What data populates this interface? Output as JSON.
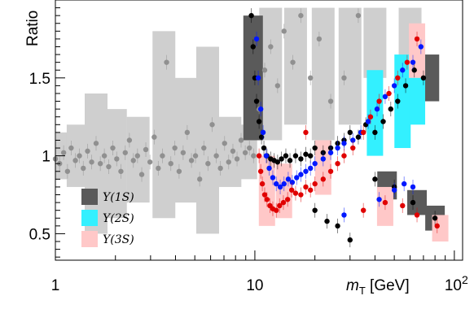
{
  "chart_data": {
    "type": "scatter",
    "title": "",
    "ylabel": "Ratio",
    "xlabel_main": "m",
    "xlabel_sub": "T",
    "xlabel_unit": " [GeV]",
    "xscale": "log",
    "xlim": [
      1,
      110
    ],
    "ylim": [
      0.33,
      2.0
    ],
    "x_ticks": [
      {
        "value": 1,
        "label": "1"
      },
      {
        "value": 10,
        "label": "10"
      }
    ],
    "x_tick_100": {
      "base": "10",
      "exp": "2"
    },
    "y_ticks": [
      {
        "value": 0.5,
        "label": "0.5"
      },
      {
        "value": 1.0,
        "label": "1"
      },
      {
        "value": 1.5,
        "label": "1.5"
      }
    ],
    "legend": {
      "placement": "bottom-left",
      "entries": [
        {
          "label": "Υ(1S)",
          "box_color": "#5a5a5a"
        },
        {
          "label": "Υ(2S)",
          "box_color": "#33f0ff"
        },
        {
          "label": "Υ(3S)",
          "box_color": "#ffc8c8"
        }
      ]
    },
    "series": [
      {
        "key": "reference",
        "color": "#909090",
        "band_color": "#cfcfcf",
        "points": [
          [
            1.0,
            0.98
          ],
          [
            1.05,
            0.95
          ],
          [
            1.1,
            1.02
          ],
          [
            1.15,
            0.9
          ],
          [
            1.2,
            1.05
          ],
          [
            1.26,
            0.97
          ],
          [
            1.32,
            1.0
          ],
          [
            1.38,
            0.92
          ],
          [
            1.45,
            1.03
          ],
          [
            1.52,
            0.96
          ],
          [
            1.6,
            1.08
          ],
          [
            1.68,
            0.95
          ],
          [
            1.76,
            1.0
          ],
          [
            1.85,
            0.93
          ],
          [
            1.94,
            1.05
          ],
          [
            2.03,
            0.98
          ],
          [
            2.13,
            0.9
          ],
          [
            2.24,
            1.02
          ],
          [
            2.35,
            1.1
          ],
          [
            2.46,
            0.97
          ],
          [
            2.58,
            1.0
          ],
          [
            2.71,
            0.88
          ],
          [
            2.84,
            1.04
          ],
          [
            2.98,
            0.96
          ],
          [
            3.13,
            1.12
          ],
          [
            3.28,
            0.92
          ],
          [
            3.44,
            1.0
          ],
          [
            3.61,
            1.6
          ],
          [
            3.79,
            0.95
          ],
          [
            3.97,
            1.05
          ],
          [
            4.17,
            0.9
          ],
          [
            4.37,
            1.02
          ],
          [
            4.58,
            1.15
          ],
          [
            4.81,
            0.97
          ],
          [
            5.04,
            1.0
          ],
          [
            5.29,
            0.85
          ],
          [
            5.55,
            1.05
          ],
          [
            5.82,
            0.95
          ],
          [
            6.11,
            1.2
          ],
          [
            6.41,
            1.0
          ],
          [
            6.72,
            0.92
          ],
          [
            7.05,
            1.08
          ],
          [
            7.39,
            0.96
          ],
          [
            7.76,
            1.03
          ],
          [
            8.14,
            0.98
          ],
          [
            8.53,
            1.1
          ],
          [
            8.95,
            1.02
          ],
          [
            9.39,
            1.05
          ],
          [
            9.85,
            1.0
          ],
          [
            10.5,
            1.3
          ],
          [
            11.2,
            1.55
          ],
          [
            12.0,
            1.7
          ],
          [
            13.0,
            1.45
          ],
          [
            14.0,
            1.8
          ],
          [
            15.5,
            1.6
          ],
          [
            17.0,
            1.9
          ],
          [
            19.0,
            1.5
          ],
          [
            21.0,
            1.75
          ],
          [
            24.0,
            1.35
          ],
          [
            28.0,
            1.5
          ],
          [
            33.0,
            1.9
          ]
        ]
      },
      {
        "key": "upsilon-1s",
        "color": "#000000",
        "band_color": "#5a5a5a",
        "points": [
          [
            9.6,
            1.9
          ],
          [
            9.8,
            1.7
          ],
          [
            10.0,
            1.5
          ],
          [
            10.2,
            1.35
          ],
          [
            10.5,
            1.22
          ],
          [
            10.8,
            1.12
          ],
          [
            11.1,
            1.05
          ],
          [
            11.5,
            1.0
          ],
          [
            12.0,
            0.98
          ],
          [
            12.5,
            0.97
          ],
          [
            13.0,
            0.96
          ],
          [
            13.6,
            0.98
          ],
          [
            14.3,
            1.0
          ],
          [
            15.0,
            0.97
          ],
          [
            16.0,
            1.0
          ],
          [
            17.0,
            0.98
          ],
          [
            18.0,
            1.01
          ],
          [
            19.0,
            1.0
          ],
          [
            20.0,
            1.05
          ],
          [
            22.0,
            1.02
          ],
          [
            24.0,
            1.05
          ],
          [
            26.0,
            1.08
          ],
          [
            28.0,
            1.1
          ],
          [
            30.0,
            1.15
          ],
          [
            33.0,
            1.12
          ],
          [
            36.0,
            1.2
          ],
          [
            40.0,
            1.15
          ],
          [
            44.0,
            1.22
          ],
          [
            48.0,
            1.3
          ],
          [
            52.0,
            1.35
          ],
          [
            57.0,
            1.45
          ],
          [
            63.0,
            1.55
          ],
          [
            70.0,
            1.5
          ],
          [
            80.0,
            0.6
          ],
          [
            62.0,
            0.7
          ],
          [
            50.0,
            0.8
          ],
          [
            40.0,
            0.85
          ],
          [
            20.0,
            0.65
          ],
          [
            23.0,
            0.58
          ],
          [
            26.0,
            0.55
          ],
          [
            30.0,
            0.46
          ]
        ]
      },
      {
        "key": "upsilon-2s",
        "color": "#0018ff",
        "band_color": "#33f0ff",
        "points": [
          [
            10.2,
            1.75
          ],
          [
            10.4,
            1.5
          ],
          [
            10.7,
            1.3
          ],
          [
            11.0,
            1.15
          ],
          [
            11.4,
            1.0
          ],
          [
            11.8,
            0.92
          ],
          [
            12.3,
            0.86
          ],
          [
            12.8,
            0.82
          ],
          [
            13.4,
            0.8
          ],
          [
            14.0,
            0.82
          ],
          [
            14.7,
            0.85
          ],
          [
            15.4,
            0.83
          ],
          [
            16.2,
            0.86
          ],
          [
            17.0,
            0.88
          ],
          [
            18.0,
            0.9
          ],
          [
            19.0,
            0.92
          ],
          [
            20.0,
            0.95
          ],
          [
            22.0,
            0.98
          ],
          [
            24.0,
            1.02
          ],
          [
            26.0,
            1.05
          ],
          [
            28.0,
            1.08
          ],
          [
            31.0,
            1.1
          ],
          [
            34.0,
            1.15
          ],
          [
            37.0,
            1.22
          ],
          [
            41.0,
            1.3
          ],
          [
            45.0,
            1.38
          ],
          [
            50.0,
            1.45
          ],
          [
            55.0,
            1.55
          ],
          [
            62.0,
            1.6
          ],
          [
            68.0,
            1.7
          ],
          [
            50.0,
            0.78
          ],
          [
            56.0,
            0.82
          ],
          [
            62.0,
            0.8
          ],
          [
            42.0,
            0.72
          ],
          [
            28.0,
            0.62
          ]
        ]
      },
      {
        "key": "upsilon-3s",
        "color": "#e00000",
        "band_color": "#ffc8c8",
        "points": [
          [
            10.5,
            1.0
          ],
          [
            10.7,
            0.9
          ],
          [
            10.9,
            0.82
          ],
          [
            11.2,
            0.75
          ],
          [
            11.5,
            0.72
          ],
          [
            11.9,
            0.68
          ],
          [
            12.3,
            0.66
          ],
          [
            12.8,
            0.65
          ],
          [
            13.3,
            0.68
          ],
          [
            13.9,
            0.7
          ],
          [
            14.6,
            0.72
          ],
          [
            15.3,
            0.78
          ],
          [
            16.0,
            0.76
          ],
          [
            17.0,
            0.75
          ],
          [
            18.0,
            0.8
          ],
          [
            19.0,
            0.78
          ],
          [
            20.0,
            0.82
          ],
          [
            22.0,
            0.85
          ],
          [
            24.0,
            0.9
          ],
          [
            26.0,
            0.95
          ],
          [
            28.0,
            1.0
          ],
          [
            31.0,
            1.05
          ],
          [
            35.0,
            1.15
          ],
          [
            38.0,
            1.25
          ],
          [
            42.0,
            1.35
          ],
          [
            47.0,
            1.4
          ],
          [
            52.0,
            1.5
          ],
          [
            58.0,
            1.6
          ],
          [
            65.0,
            1.75
          ],
          [
            18.0,
            1.15
          ],
          [
            35.0,
            0.65
          ],
          [
            45.0,
            0.7
          ],
          [
            55.0,
            0.68
          ],
          [
            65.0,
            0.62
          ],
          [
            82.0,
            0.55
          ]
        ]
      }
    ],
    "reference_bands": [
      [
        1.0,
        0.85,
        1.1
      ],
      [
        1.15,
        0.85,
        1.15
      ],
      [
        1.3,
        0.8,
        1.2
      ],
      [
        1.6,
        0.5,
        1.4
      ],
      [
        2.0,
        0.6,
        1.3
      ],
      [
        2.6,
        0.7,
        1.25
      ],
      [
        3.5,
        0.6,
        1.8
      ],
      [
        4.5,
        0.7,
        1.5
      ],
      [
        5.8,
        0.5,
        1.7
      ],
      [
        7.5,
        0.8,
        1.25
      ],
      [
        9.0,
        0.85,
        1.2
      ],
      [
        12.0,
        1.1,
        1.95
      ],
      [
        16.0,
        1.2,
        1.95
      ],
      [
        22.0,
        1.1,
        1.95
      ],
      [
        30.0,
        1.2,
        1.95
      ],
      [
        40.0,
        1.5,
        1.95
      ],
      [
        60.0,
        1.45,
        1.95
      ]
    ],
    "one_s_bands": [
      [
        9.8,
        1.1,
        1.9
      ],
      [
        75.0,
        1.35,
        1.65
      ],
      [
        46.0,
        0.72,
        0.9
      ],
      [
        80.0,
        0.52,
        0.68
      ],
      [
        65.0,
        0.62,
        0.78
      ]
    ],
    "two_s_bands": [
      [
        40.0,
        1.0,
        1.55
      ],
      [
        55.0,
        1.05,
        1.65
      ],
      [
        65.0,
        1.2,
        1.75
      ]
    ],
    "three_s_bands": [
      [
        11.5,
        0.55,
        1.0
      ],
      [
        14.0,
        0.6,
        0.95
      ],
      [
        22.0,
        0.75,
        1.1
      ],
      [
        45.0,
        0.55,
        0.8
      ],
      [
        65.0,
        1.5,
        1.85
      ],
      [
        85.0,
        0.45,
        0.62
      ]
    ]
  }
}
